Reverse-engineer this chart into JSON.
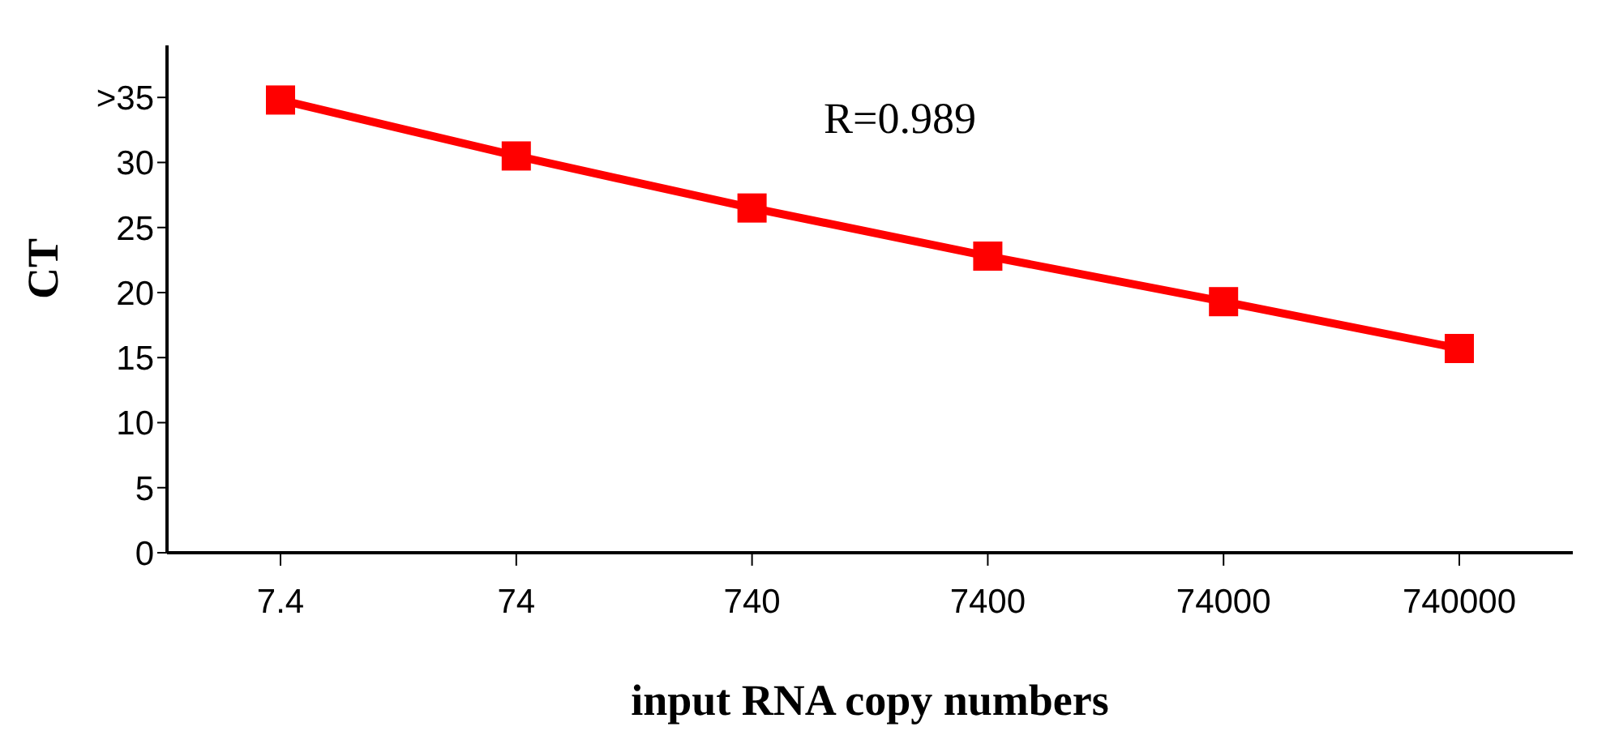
{
  "chart_data": {
    "type": "line",
    "xlabel": "input RNA copy numbers",
    "ylabel": "CT",
    "categories": [
      "7.4",
      "74",
      "740",
      "7400",
      "74000",
      "740000"
    ],
    "series": [
      {
        "color": "#ff0000",
        "values": [
          34.8,
          30.5,
          26.5,
          22.8,
          19.3,
          15.7
        ]
      }
    ],
    "ylim": [
      0,
      39
    ],
    "yticks": [
      0,
      5,
      10,
      15,
      20,
      25,
      30,
      {
        "value": 35,
        "label": ">35"
      }
    ],
    "annotations": [
      "R=0.989"
    ],
    "grid": false,
    "legend": false,
    "marker": "square",
    "line_style": "solid"
  }
}
